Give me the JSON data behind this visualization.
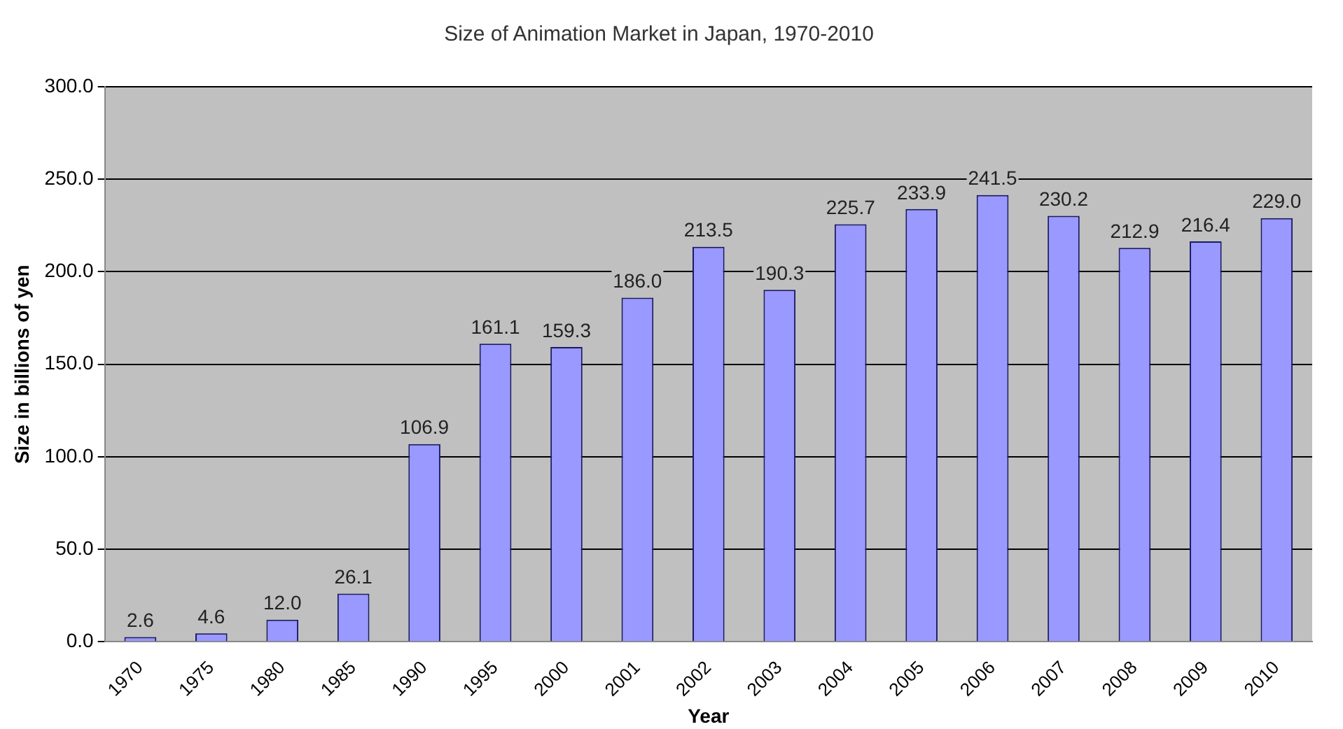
{
  "chart_data": {
    "type": "bar",
    "title": "Size of Animation Market in Japan, 1970-2010",
    "xlabel": "Year",
    "ylabel": "Size in billions of yen",
    "categories": [
      "1970",
      "1975",
      "1980",
      "1985",
      "1990",
      "1995",
      "2000",
      "2001",
      "2002",
      "2003",
      "2004",
      "2005",
      "2006",
      "2007",
      "2008",
      "2009",
      "2010"
    ],
    "values": [
      2.6,
      4.6,
      12.0,
      26.1,
      106.9,
      161.1,
      159.3,
      186.0,
      213.5,
      190.3,
      225.7,
      233.9,
      241.5,
      230.2,
      212.9,
      216.4,
      229.0
    ],
    "value_labels": [
      "2.6",
      "4.6",
      "12.0",
      "26.1",
      "106.9",
      "161.1",
      "159.3",
      "186.0",
      "213.5",
      "190.3",
      "225.7",
      "233.9",
      "241.5",
      "230.2",
      "212.9",
      "216.4",
      "229.0"
    ],
    "color": "#9999ff",
    "ylim": [
      0,
      300
    ],
    "yticks": [
      {
        "value": 0,
        "label": "0.0"
      },
      {
        "value": 50,
        "label": "50.0"
      },
      {
        "value": 100,
        "label": "100.0"
      },
      {
        "value": 150,
        "label": "150.0"
      },
      {
        "value": 200,
        "label": "200.0"
      },
      {
        "value": 250,
        "label": "250.0"
      },
      {
        "value": 300,
        "label": "300.0"
      }
    ],
    "grid": "y"
  }
}
